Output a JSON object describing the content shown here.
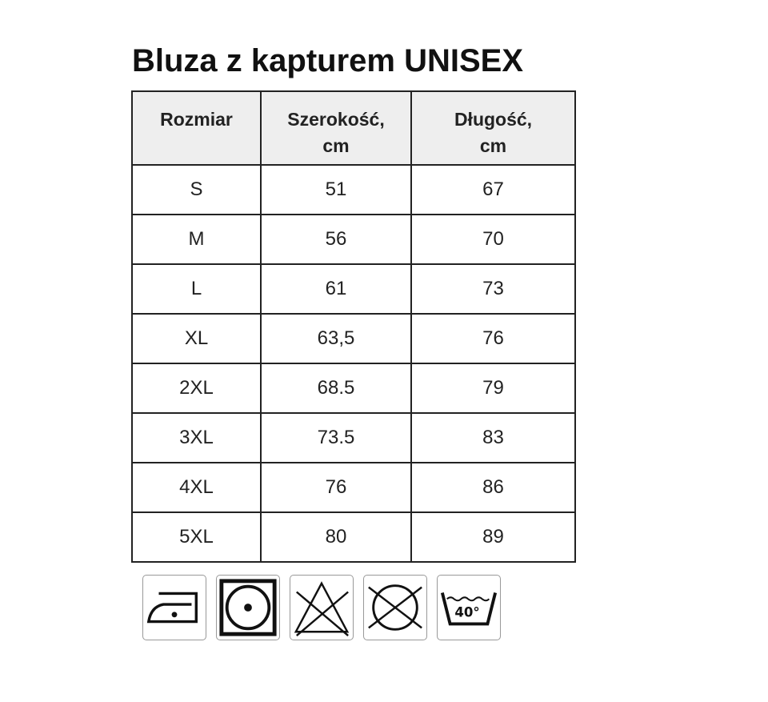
{
  "title": "Bluza z kapturem UNISEX",
  "table": {
    "headers": [
      "Rozmiar",
      "Szerokość, cm",
      "Długość, cm"
    ],
    "rows": [
      [
        "S",
        "51",
        "67"
      ],
      [
        "M",
        "56",
        "70"
      ],
      [
        "L",
        "61",
        "73"
      ],
      [
        "XL",
        "63,5",
        "76"
      ],
      [
        "2XL",
        "68.5",
        "79"
      ],
      [
        "3XL",
        "73.5",
        "83"
      ],
      [
        "4XL",
        "76",
        "86"
      ],
      [
        "5XL",
        "80",
        "89"
      ]
    ]
  },
  "care_icons": [
    {
      "icon": "iron-low-temperature-icon"
    },
    {
      "icon": "tumble-dry-low-icon"
    },
    {
      "icon": "do-not-bleach-icon"
    },
    {
      "icon": "do-not-dry-clean-icon"
    },
    {
      "icon": "wash-40-icon",
      "label": "40°"
    }
  ]
}
